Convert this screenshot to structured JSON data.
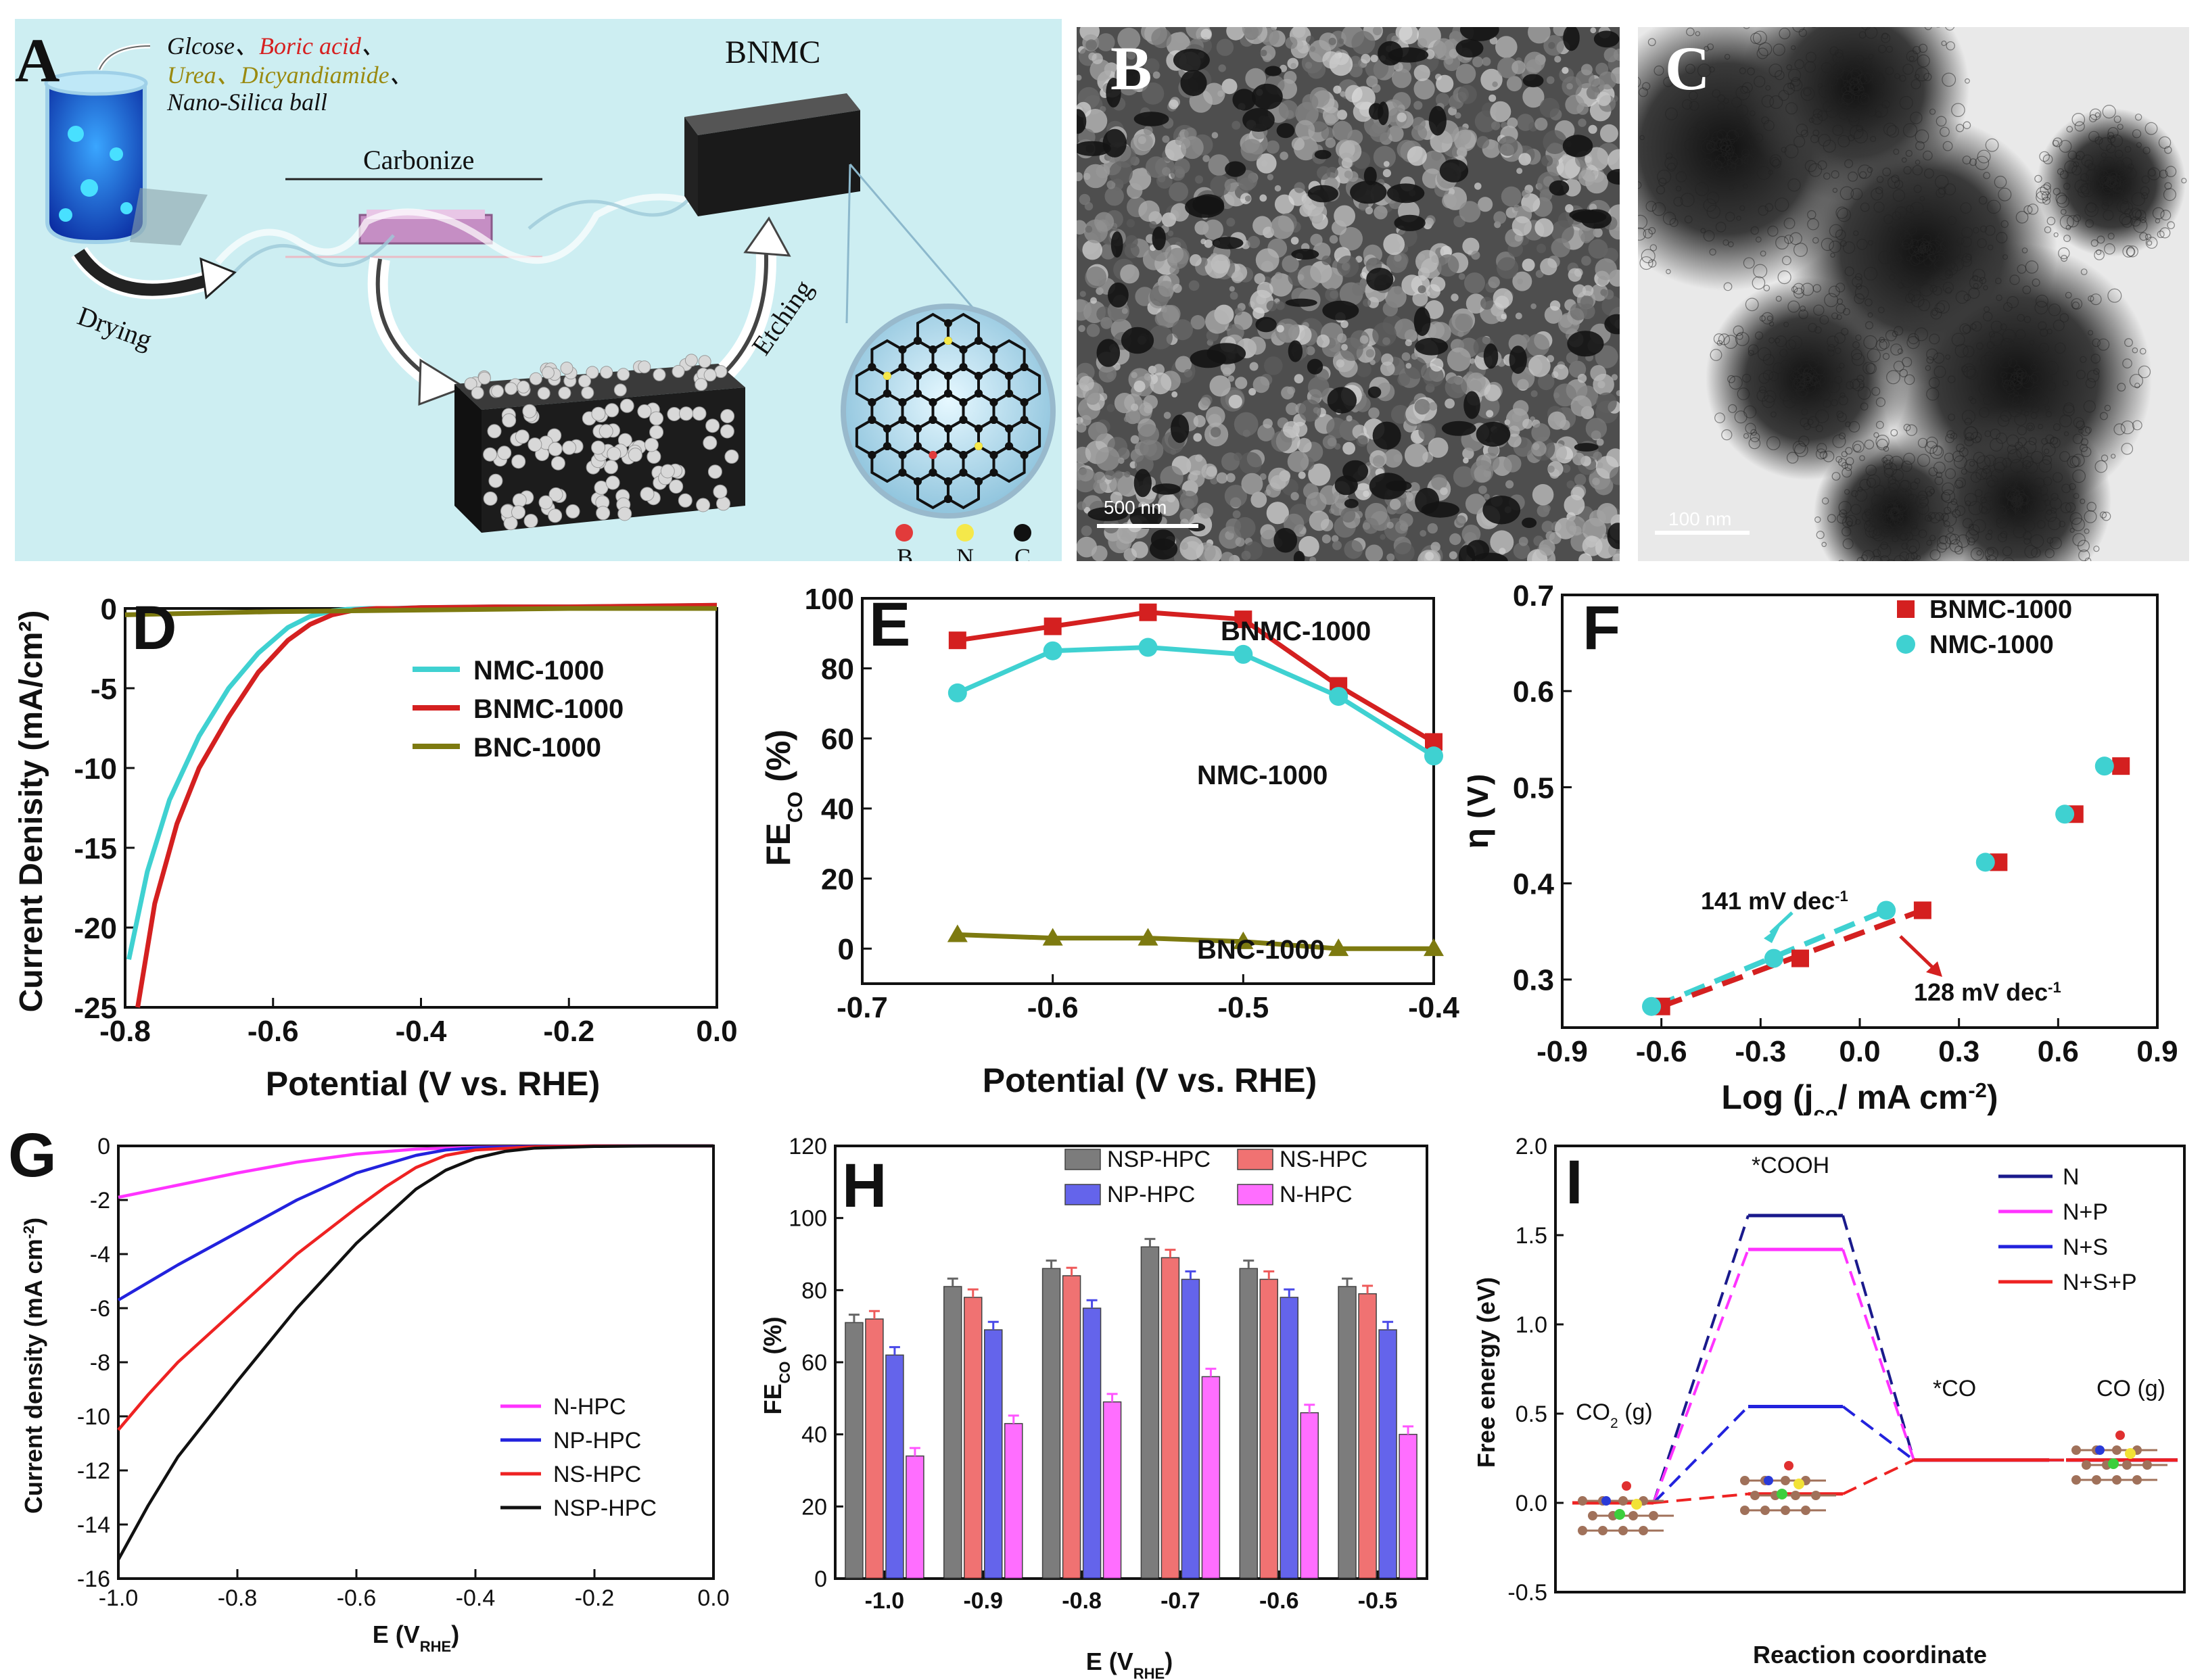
{
  "panels": {
    "A": {
      "letter": "A",
      "ingredients": {
        "l1a": "Glcose、",
        "l1b": "Boric acid",
        "l1c": "、",
        "l2a": "Urea、",
        "l2b": "Dicyandiamide",
        "l2c": "、",
        "l3": "Nano-Silica ball"
      },
      "product": "BNMC",
      "carbonize": "Carbonize",
      "drying": "Drying",
      "etching": "Etching",
      "legend": [
        "B",
        "N",
        "C"
      ],
      "colors": {
        "bg": "#cdeef2",
        "B": "#e23b3b",
        "N": "#f5e84a",
        "C": "#111111",
        "ink_red": "#d62020",
        "ink_olive": "#9a8a10"
      }
    },
    "B": {
      "letter": "B",
      "scale": "500 nm"
    },
    "C": {
      "letter": "C",
      "scale": "100 nm"
    },
    "D": {
      "letter": "D"
    },
    "E": {
      "letter": "E"
    },
    "F": {
      "letter": "F",
      "ann1": "141 mV dec",
      "ann1_sup": "-1",
      "ann2": "128 mV dec",
      "ann2_sup": "-1"
    },
    "G": {
      "letter": "G"
    },
    "H": {
      "letter": "H"
    },
    "I": {
      "letter": "I"
    }
  },
  "chart_data": [
    {
      "id": "D",
      "type": "line",
      "xlabel": "Potential (V vs. RHE)",
      "ylabel": "Current Denisity (mA/cm²)",
      "xlim": [
        -0.8,
        0.0
      ],
      "ylim": [
        -25,
        0
      ],
      "xticks": [
        "-0.8",
        "-0.6",
        "-0.4",
        "-0.2",
        "0.0"
      ],
      "yticks": [
        "0",
        "-5",
        "-10",
        "-15",
        "-20",
        "-25"
      ],
      "series": [
        {
          "name": "NMC-1000",
          "color": "#3fd1d1",
          "x": [
            -0.795,
            -0.77,
            -0.74,
            -0.7,
            -0.66,
            -0.62,
            -0.58,
            -0.55,
            -0.52,
            -0.5,
            -0.47,
            -0.44,
            -0.4,
            -0.3,
            -0.2,
            -0.1,
            0.0
          ],
          "y": [
            -22,
            -16.5,
            -12,
            -8,
            -5,
            -2.8,
            -1.2,
            -0.5,
            -0.15,
            -0.05,
            0,
            0,
            0.05,
            0.1,
            0.1,
            0.15,
            0.2
          ]
        },
        {
          "name": "BNMC-1000",
          "color": "#d42020",
          "x": [
            -0.783,
            -0.76,
            -0.73,
            -0.7,
            -0.66,
            -0.62,
            -0.58,
            -0.55,
            -0.52,
            -0.49,
            -0.46,
            -0.43,
            -0.4,
            -0.3,
            -0.2,
            -0.1,
            0.0
          ],
          "y": [
            -25,
            -18.5,
            -13.5,
            -10,
            -6.8,
            -4,
            -2,
            -1,
            -0.4,
            -0.1,
            0,
            0,
            0.05,
            0.1,
            0.1,
            0.15,
            0.2
          ]
        },
        {
          "name": "BNC-1000",
          "color": "#7d7a10",
          "x": [
            -0.8,
            -0.6,
            -0.4,
            -0.2,
            0.0
          ],
          "y": [
            -0.4,
            -0.2,
            -0.1,
            0,
            0
          ]
        }
      ]
    },
    {
      "id": "E",
      "type": "line",
      "xlabel": "Potential (V vs. RHE)",
      "ylabel": "FE",
      "ylabel_sub": "CO",
      "ylabel_tail": " (%)",
      "xlim": [
        -0.7,
        -0.4
      ],
      "ylim": [
        -10,
        100
      ],
      "xticks": [
        "-0.7",
        "-0.6",
        "-0.5",
        "-0.4"
      ],
      "yticks": [
        "0",
        "20",
        "40",
        "60",
        "80",
        "100"
      ],
      "series": [
        {
          "name": "BNMC-1000",
          "color": "#d42020",
          "marker": "square",
          "x": [
            -0.65,
            -0.6,
            -0.55,
            -0.5,
            -0.45,
            -0.4
          ],
          "y": [
            88,
            92,
            96,
            94,
            75,
            59
          ]
        },
        {
          "name": "NMC-1000",
          "color": "#3fd1d1",
          "marker": "circle",
          "x": [
            -0.65,
            -0.6,
            -0.55,
            -0.5,
            -0.45,
            -0.4
          ],
          "y": [
            73,
            85,
            86,
            84,
            72,
            55
          ]
        },
        {
          "name": "BNC-1000",
          "color": "#7d7a10",
          "marker": "triangle",
          "x": [
            -0.65,
            -0.6,
            -0.55,
            -0.5,
            -0.45,
            -0.4
          ],
          "y": [
            4,
            3,
            3,
            2,
            0,
            0
          ]
        }
      ]
    },
    {
      "id": "F",
      "type": "scatter",
      "xlabel": "Log (j",
      "xlabel_sub": "co",
      "xlabel_tail": "/ mA cm",
      "xlabel_sup": "-2",
      "xlabel_end": ")",
      "ylabel": "η (V)",
      "xlim": [
        -0.9,
        0.9
      ],
      "ylim": [
        0.25,
        0.7
      ],
      "xticks": [
        "-0.9",
        "-0.6",
        "-0.3",
        "0.0",
        "0.3",
        "0.6",
        "0.9"
      ],
      "yticks": [
        "0.3",
        "0.4",
        "0.5",
        "0.6",
        "0.7"
      ],
      "series": [
        {
          "name": "BNMC-1000",
          "color": "#d42020",
          "marker": "square",
          "x": [
            -0.6,
            -0.18,
            0.19,
            0.42,
            0.65,
            0.79
          ],
          "y": [
            0.272,
            0.322,
            0.372,
            0.422,
            0.472,
            0.522
          ]
        },
        {
          "name": "NMC-1000",
          "color": "#3fd1d1",
          "marker": "circle",
          "x": [
            -0.63,
            -0.26,
            0.08,
            0.38,
            0.62,
            0.74
          ],
          "y": [
            0.272,
            0.322,
            0.372,
            0.422,
            0.472,
            0.522
          ]
        }
      ],
      "fits": [
        {
          "color": "#3fd1d1",
          "x": [
            -0.62,
            0.08
          ],
          "y": [
            0.272,
            0.372
          ]
        },
        {
          "color": "#d42020",
          "x": [
            -0.6,
            0.19
          ],
          "y": [
            0.272,
            0.372
          ]
        }
      ]
    },
    {
      "id": "G",
      "type": "line",
      "xlabel": "E (V",
      "xlabel_sub": "RHE",
      "xlabel_tail": ")",
      "ylabel": "Current density (mA cm",
      "ylabel_sup": "-2",
      "ylabel_tail": ")",
      "xlim": [
        -1.0,
        0.0
      ],
      "ylim": [
        -16,
        0
      ],
      "xticks": [
        "-1.0",
        "-0.8",
        "-0.6",
        "-0.4",
        "-0.2",
        "0.0"
      ],
      "yticks": [
        "0",
        "-2",
        "-4",
        "-6",
        "-8",
        "-10",
        "-12",
        "-14",
        "-16"
      ],
      "series": [
        {
          "name": "N-HPC",
          "color": "#ff33ff",
          "x": [
            -1.0,
            -0.9,
            -0.8,
            -0.7,
            -0.6,
            -0.5,
            -0.4,
            -0.3,
            -0.2,
            -0.1,
            0.0
          ],
          "y": [
            -1.9,
            -1.45,
            -1.0,
            -0.6,
            -0.3,
            -0.12,
            -0.05,
            -0.02,
            0,
            0,
            0
          ]
        },
        {
          "name": "NP-HPC",
          "color": "#2222dd",
          "x": [
            -1.0,
            -0.9,
            -0.8,
            -0.7,
            -0.6,
            -0.5,
            -0.45,
            -0.4,
            -0.3,
            -0.2,
            -0.1,
            0.0
          ],
          "y": [
            -5.7,
            -4.4,
            -3.2,
            -2.0,
            -1.0,
            -0.35,
            -0.15,
            -0.07,
            -0.02,
            0,
            0,
            0
          ]
        },
        {
          "name": "NS-HPC",
          "color": "#ee2222",
          "x": [
            -1.0,
            -0.95,
            -0.9,
            -0.8,
            -0.7,
            -0.6,
            -0.55,
            -0.5,
            -0.45,
            -0.4,
            -0.3,
            -0.2,
            -0.1,
            0.0
          ],
          "y": [
            -10.5,
            -9.2,
            -8.0,
            -6.0,
            -4.0,
            -2.3,
            -1.5,
            -0.8,
            -0.35,
            -0.15,
            -0.03,
            0,
            0,
            0
          ]
        },
        {
          "name": "NSP-HPC",
          "color": "#111111",
          "x": [
            -1.0,
            -0.98,
            -0.95,
            -0.9,
            -0.8,
            -0.7,
            -0.6,
            -0.55,
            -0.5,
            -0.45,
            -0.4,
            -0.35,
            -0.3,
            -0.2,
            -0.1,
            0.0
          ],
          "y": [
            -15.3,
            -14.5,
            -13.3,
            -11.5,
            -8.7,
            -6.0,
            -3.6,
            -2.6,
            -1.6,
            -0.9,
            -0.45,
            -0.2,
            -0.08,
            -0.02,
            0,
            0
          ]
        }
      ]
    },
    {
      "id": "H",
      "type": "bar",
      "xlabel": "E (V",
      "xlabel_sub": "RHE",
      "xlabel_tail": ")",
      "ylabel": "FE",
      "ylabel_sub": "CO",
      "ylabel_tail": " (%)",
      "ylim": [
        0,
        120
      ],
      "yticks": [
        "0",
        "20",
        "40",
        "60",
        "80",
        "100",
        "120"
      ],
      "categories": [
        "-1.0",
        "-0.9",
        "-0.8",
        "-0.7",
        "-0.6",
        "-0.5"
      ],
      "series": [
        {
          "name": "NSP-HPC",
          "color": "#666666",
          "values": [
            71,
            81,
            86,
            92,
            86,
            81
          ]
        },
        {
          "name": "NS-HPC",
          "color": "#ee5a5a",
          "values": [
            72,
            78,
            84,
            89,
            83,
            79
          ]
        },
        {
          "name": "NP-HPC",
          "color": "#4a4ae8",
          "values": [
            62,
            69,
            75,
            83,
            78,
            69
          ]
        },
        {
          "name": "N-HPC",
          "color": "#ff55ff",
          "values": [
            34,
            43,
            49,
            56,
            46,
            40
          ]
        }
      ]
    },
    {
      "id": "I",
      "type": "line",
      "xlabel": "Reaction coordinate",
      "ylabel": "Free energy (eV)",
      "ylim": [
        -0.5,
        2.0
      ],
      "yticks": [
        "-0.5",
        "0.0",
        "0.5",
        "1.0",
        "1.5",
        "2.0"
      ],
      "states": [
        "CO2 (g)",
        "*COOH",
        "*CO",
        "CO (g)"
      ],
      "state_labels": {
        "co2": "CO",
        "co2_sub": "2",
        "co2_tail": " (g)",
        "cooh": "*COOH",
        "co": "*CO",
        "cog": "CO (g)"
      },
      "series": [
        {
          "name": "N",
          "color": "#1a1a8c",
          "values": [
            0.0,
            1.61,
            0.24,
            0.24
          ]
        },
        {
          "name": "N+P",
          "color": "#ff33ff",
          "values": [
            0.0,
            1.42,
            0.24,
            0.24
          ]
        },
        {
          "name": "N+S",
          "color": "#2222dd",
          "values": [
            0.0,
            0.54,
            0.24,
            0.24
          ]
        },
        {
          "name": "N+S+P",
          "color": "#ee2222",
          "values": [
            0.0,
            0.05,
            0.24,
            0.24
          ]
        }
      ]
    }
  ]
}
